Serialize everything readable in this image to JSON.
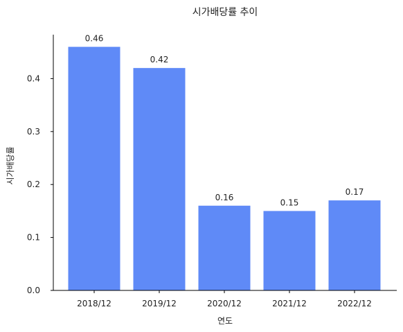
{
  "chart_data": {
    "type": "bar",
    "title": "시가배당률 추이",
    "xlabel": "연도",
    "ylabel": "시가배당률",
    "categories": [
      "2018/12",
      "2019/12",
      "2020/12",
      "2021/12",
      "2022/12"
    ],
    "values": [
      0.46,
      0.42,
      0.16,
      0.15,
      0.17
    ],
    "data_labels": [
      "0.46",
      "0.42",
      "0.16",
      "0.15",
      "0.17"
    ],
    "yticks": [
      0.0,
      0.1,
      0.2,
      0.3,
      0.4
    ],
    "ytick_labels": [
      "0.0",
      "0.1",
      "0.2",
      "0.3",
      "0.4"
    ],
    "ylim": [
      0,
      0.483
    ],
    "grid": false,
    "legend": "none",
    "bar_color": "#5F8AF7"
  }
}
